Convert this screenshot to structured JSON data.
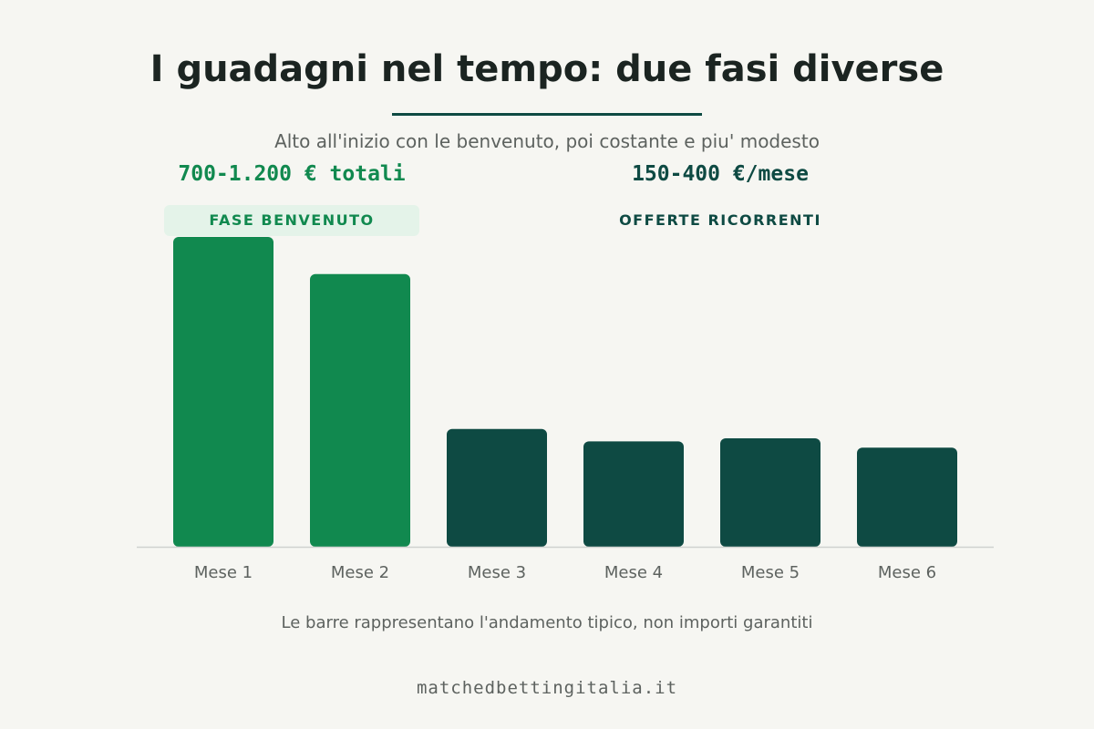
{
  "title": "I guadagni nel tempo: due fasi diverse",
  "subtitle": "Alto all'inizio con le benvenuto, poi costante e piu' modesto",
  "phases": {
    "welcome": {
      "total": "700-1.200 € totali",
      "label": "FASE BENVENUTO"
    },
    "recurring": {
      "total": "150-400 €/mese",
      "label": "OFFERTE RICORRENTI"
    }
  },
  "note": "Le barre rappresentano l'andamento tipico, non importi garantiti",
  "footer": "matchedbettingitalia.it",
  "colors": {
    "welcome": "#11894f",
    "recurring": "#0e4a43",
    "axis": "#cfd2cf",
    "tick_text": "#5d625f"
  },
  "chart_data": {
    "type": "bar",
    "categories": [
      "Mese 1",
      "Mese 2",
      "Mese 3",
      "Mese 4",
      "Mese 5",
      "Mese 6"
    ],
    "values": [
      100,
      88,
      38,
      34,
      35,
      32
    ],
    "phase": [
      "welcome",
      "welcome",
      "recurring",
      "recurring",
      "recurring",
      "recurring"
    ],
    "title": "I guadagni nel tempo: due fasi diverse",
    "xlabel": "",
    "ylabel": "",
    "ylim": [
      0,
      100
    ],
    "grid": false,
    "legend": "none"
  }
}
